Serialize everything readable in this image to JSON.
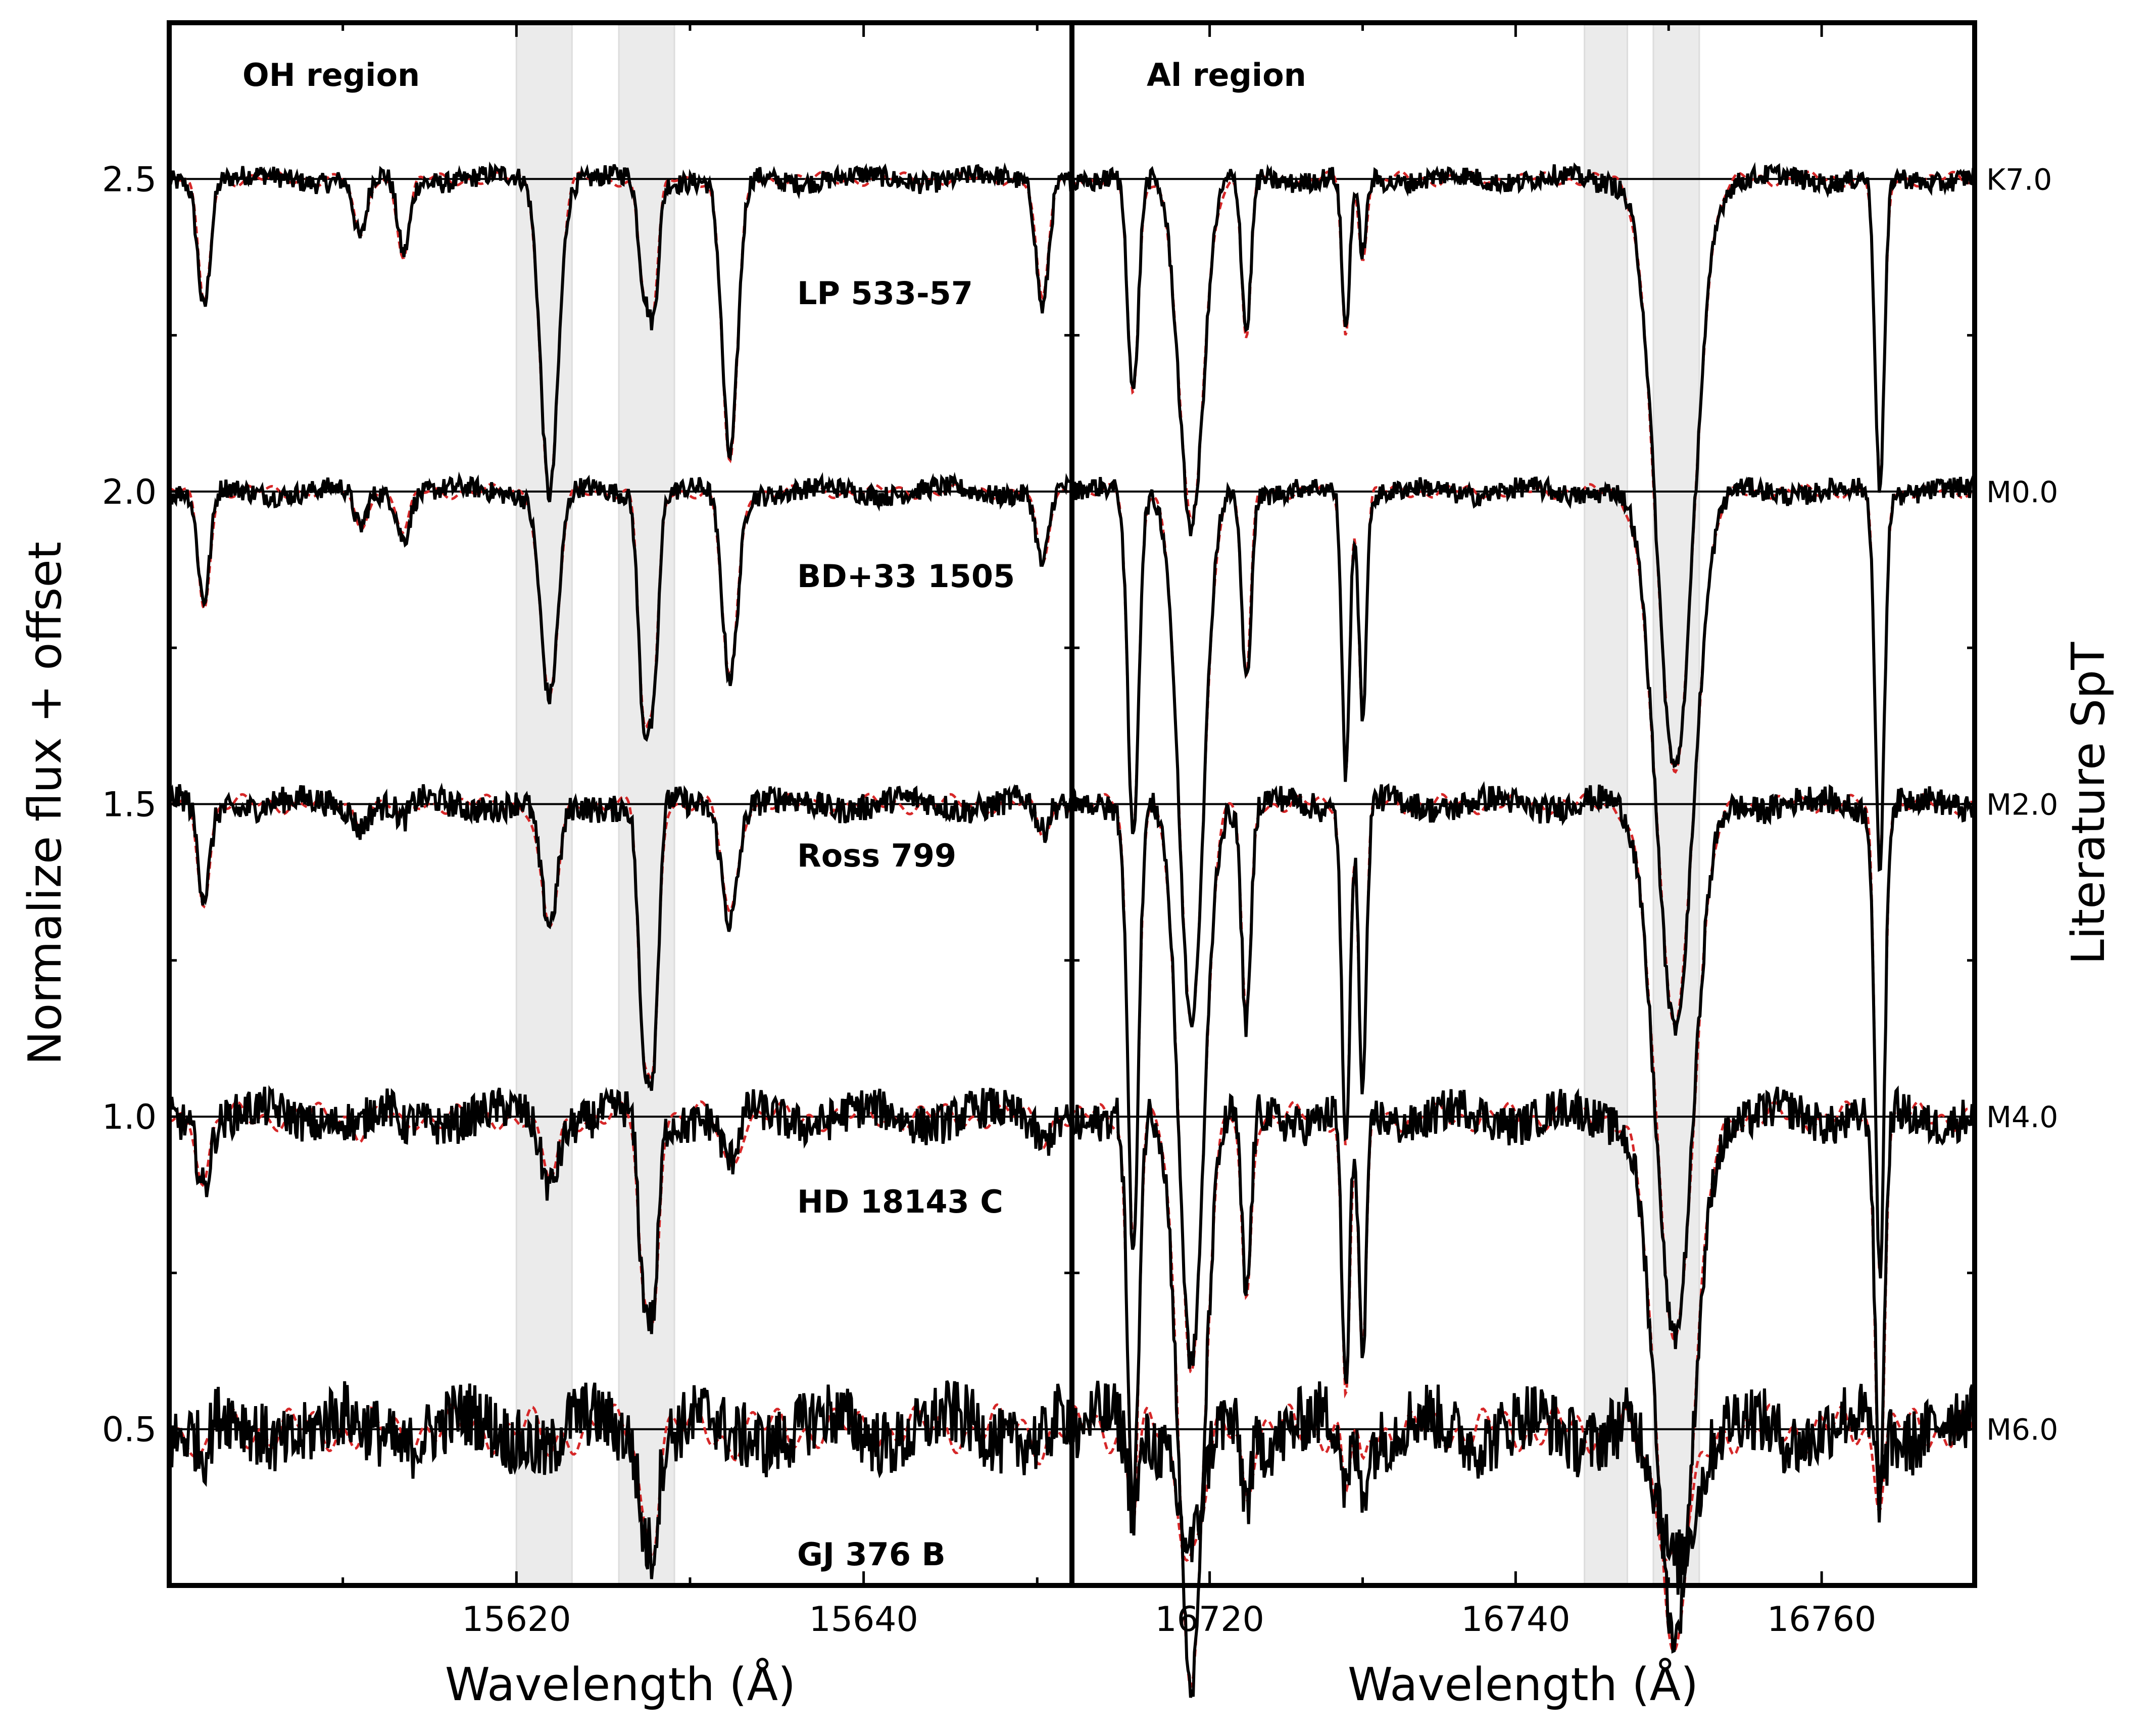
{
  "chart_data": {
    "type": "line",
    "ylabel": "Normalize flux + offset",
    "right_ylabel": "Literature SpT",
    "ylim": [
      0.25,
      2.75
    ],
    "yticks": [
      0.5,
      1.0,
      1.5,
      2.0,
      2.5
    ],
    "ytick_labels": [
      "0.5",
      "1.0",
      "1.5",
      "2.0",
      "2.5"
    ],
    "panels": [
      {
        "id": "oh",
        "title": "OH region",
        "xlabel": "Wavelength (Å)",
        "xlim": [
          15600,
          15652
        ],
        "xticks": [
          15620,
          15640
        ],
        "xtick_labels": [
          "15620",
          "15640"
        ],
        "minor_xticks": [
          15610,
          15630,
          15650
        ],
        "shaded_bands": [
          [
            15620.0,
            15623.2
          ],
          [
            15625.9,
            15629.1
          ]
        ],
        "lines": [
          15602.0,
          15611.0,
          15613.5,
          15621.9,
          15627.3,
          15627.9,
          15632.3,
          15650.3
        ],
        "widths": [
          0.35,
          0.35,
          0.35,
          0.5,
          0.3,
          0.3,
          0.45,
          0.35
        ],
        "series_depths": [
          [
            0.2,
            0.1,
            0.12,
            0.5,
            0.15,
            0.2,
            0.45,
            0.2
          ],
          [
            0.18,
            0.06,
            0.07,
            0.33,
            0.32,
            0.3,
            0.3,
            0.12
          ],
          [
            0.15,
            0.03,
            0.03,
            0.2,
            0.35,
            0.38,
            0.18,
            0.05
          ],
          [
            0.1,
            0.02,
            0.02,
            0.1,
            0.25,
            0.28,
            0.08,
            0.03
          ],
          [
            0.05,
            0.01,
            0.01,
            0.03,
            0.12,
            0.15,
            0.02,
            0.02
          ]
        ]
      },
      {
        "id": "al",
        "title": "Al region",
        "xlabel": "Wavelength (Å)",
        "xlim": [
          16711,
          16770
        ],
        "xticks": [
          16720,
          16740,
          16760
        ],
        "xtick_labels": [
          "16720",
          "16740",
          "16760"
        ],
        "minor_xticks": [
          16730,
          16750
        ],
        "shaded_bands": [
          [
            16744.5,
            16747.3
          ],
          [
            16749.0,
            16752.0
          ]
        ],
        "lines": [
          16715.0,
          16718.8,
          16722.4,
          16728.9,
          16730.0,
          16750.4,
          16763.8
        ],
        "widths": [
          0.35,
          0.8,
          0.3,
          0.25,
          0.25,
          1.2,
          0.3
        ],
        "series_depths": [
          [
            0.35,
            0.55,
            0.25,
            0.25,
            0.12,
            0.95,
            0.5
          ],
          [
            0.55,
            0.85,
            0.3,
            0.45,
            0.35,
            0.85,
            0.6
          ],
          [
            0.7,
            0.9,
            0.35,
            0.55,
            0.45,
            0.85,
            0.75
          ],
          [
            0.65,
            0.9,
            0.3,
            0.45,
            0.4,
            0.85,
            0.6
          ],
          [
            0.12,
            0.2,
            0.1,
            0.1,
            0.08,
            0.2,
            0.1
          ]
        ]
      }
    ],
    "series": [
      {
        "name": "LP 533-57",
        "offset": 2.5,
        "spt": "K7.0"
      },
      {
        "name": "BD+33 1505",
        "offset": 2.0,
        "spt": "M0.0"
      },
      {
        "name": "Ross 799",
        "offset": 1.5,
        "spt": "M2.0"
      },
      {
        "name": "HD 18143 C",
        "offset": 1.0,
        "spt": "M4.0"
      },
      {
        "name": "GJ 376 B",
        "offset": 0.5,
        "spt": "M6.0"
      }
    ],
    "noise": [
      0.015,
      0.015,
      0.02,
      0.03,
      0.05
    ],
    "observed_color": "#000000",
    "model_color": "#d62728",
    "band_color": "#ebebeb"
  }
}
